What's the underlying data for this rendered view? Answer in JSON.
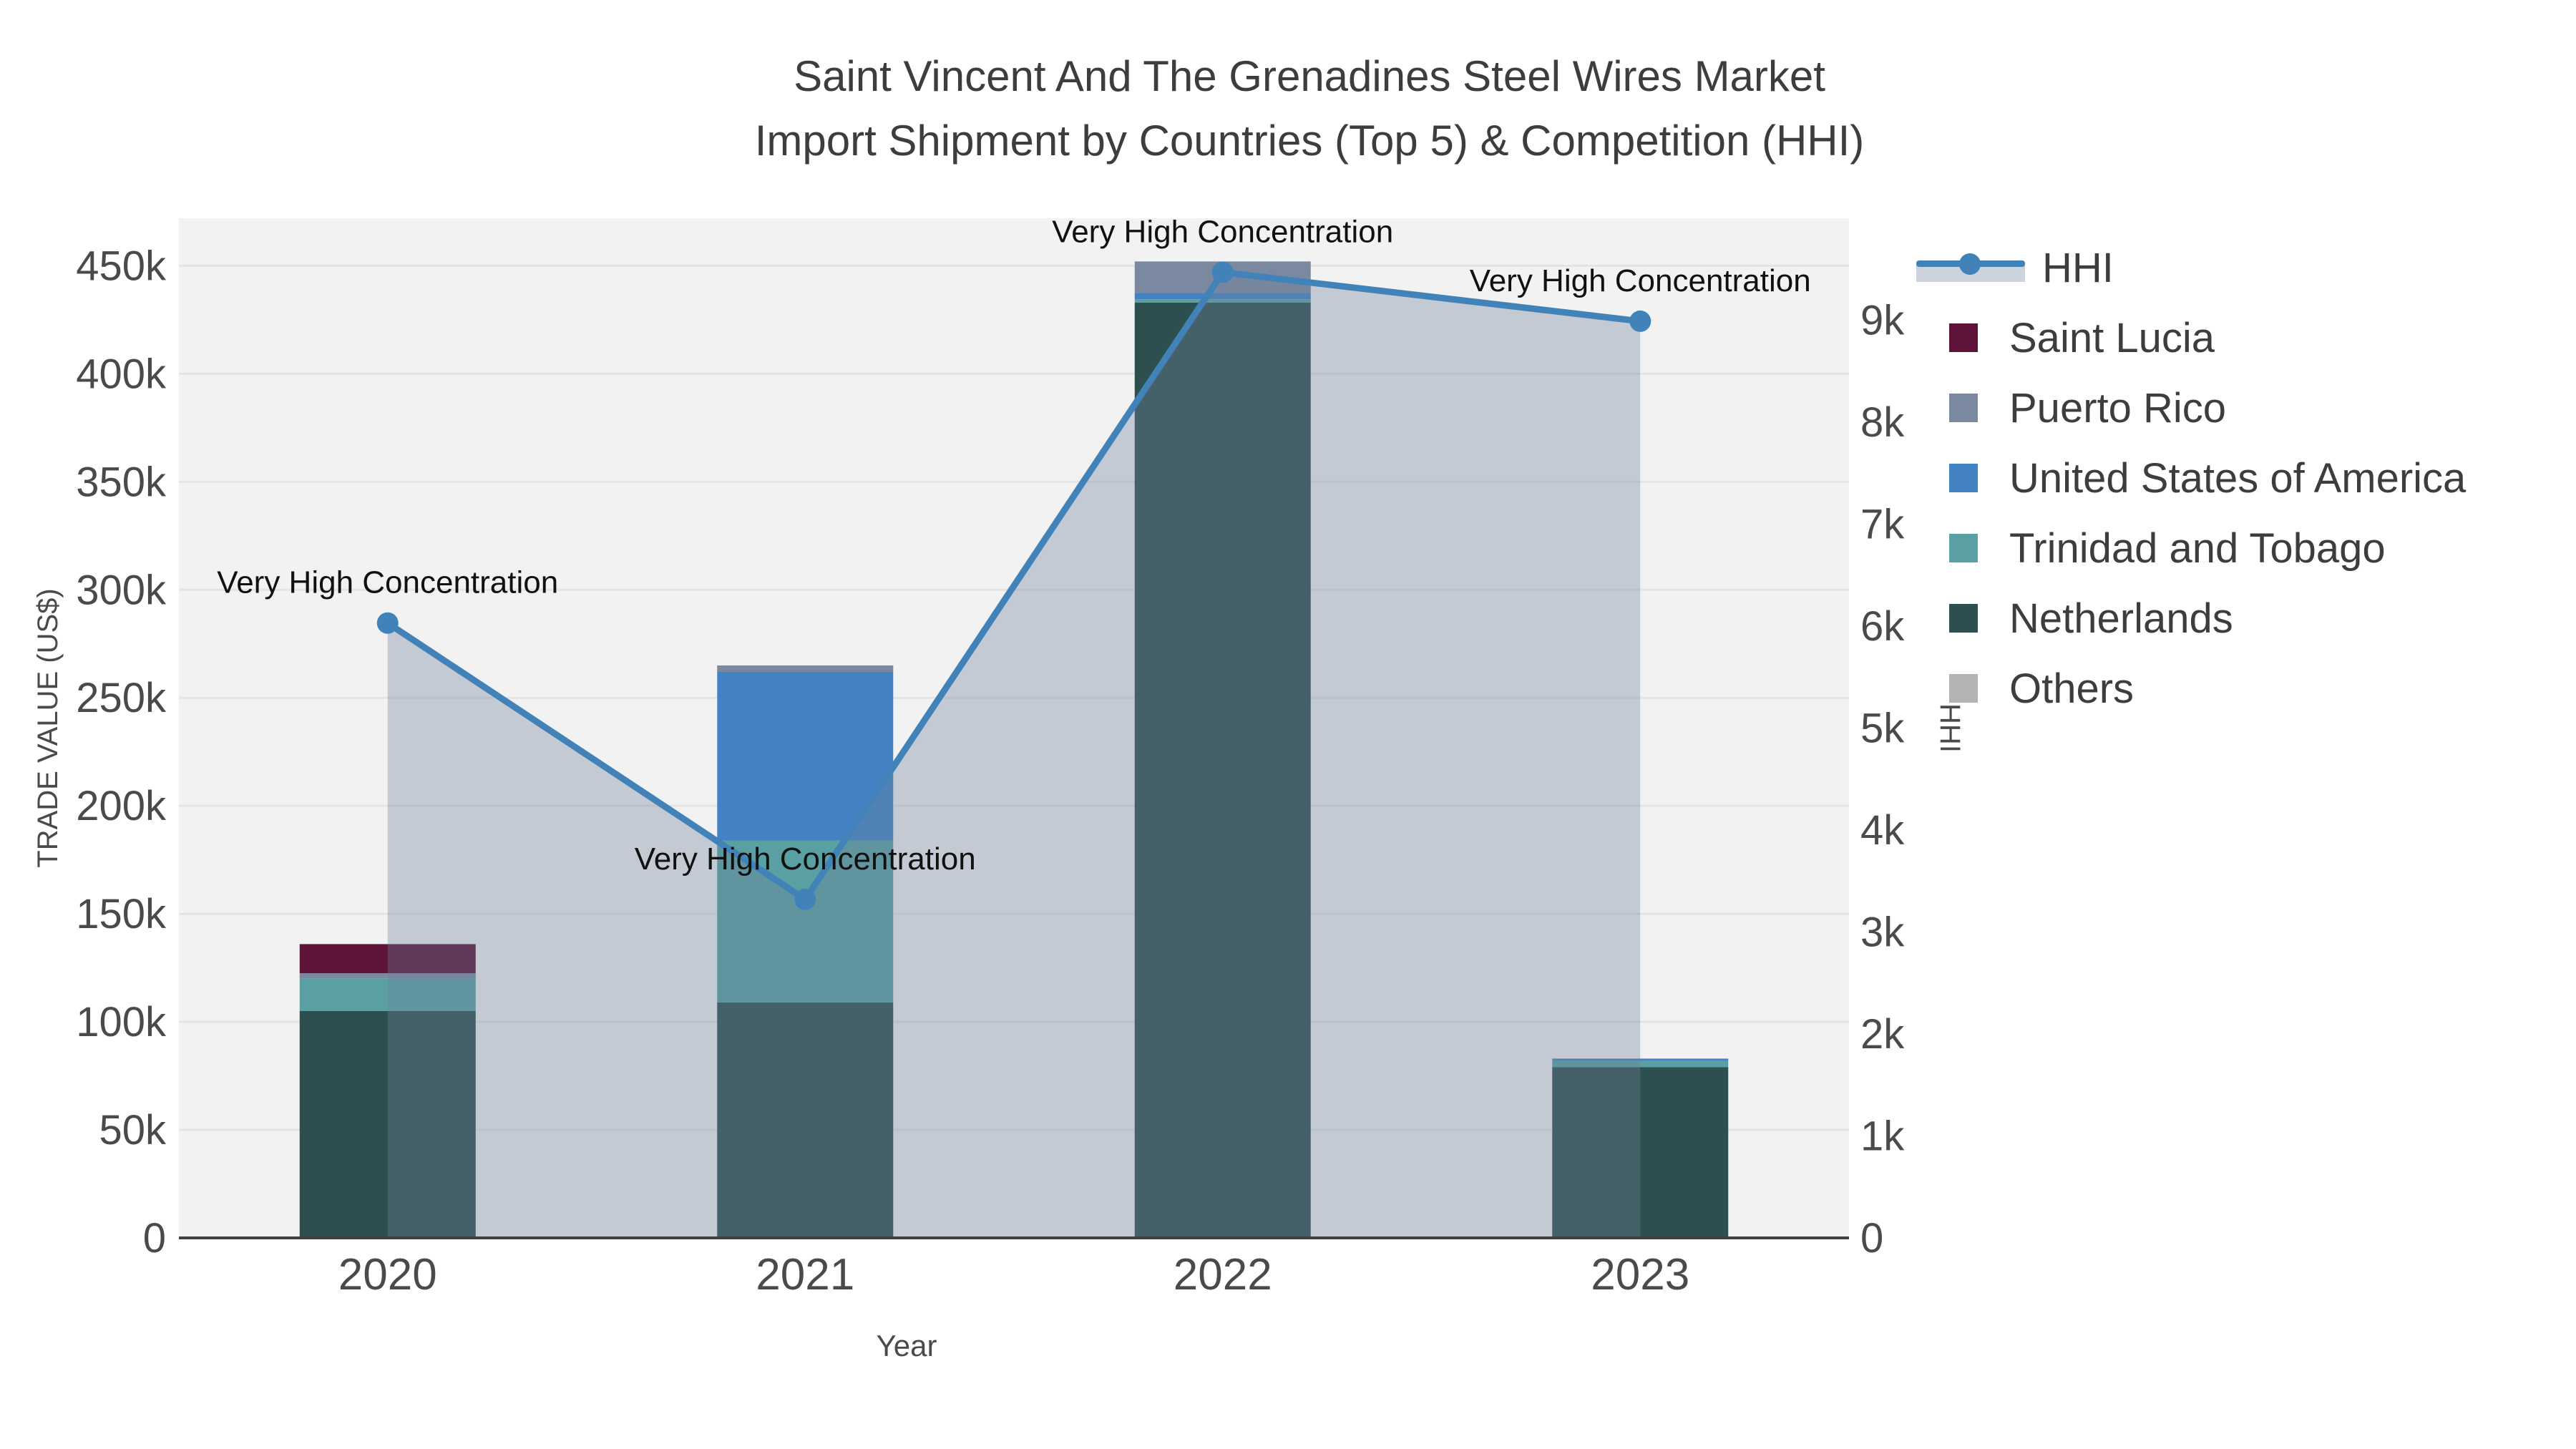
{
  "title": {
    "line1": "Saint Vincent And The Grenadines Steel Wires Market",
    "line2": "Import Shipment by Countries (Top 5) & Competition (HHI)"
  },
  "chart_data": {
    "type": "bar",
    "subtype": "stacked-bar-with-line",
    "categories": [
      "2020",
      "2021",
      "2022",
      "2023"
    ],
    "bar_series": [
      {
        "name": "Saint Lucia",
        "color": "#5e1338",
        "values": [
          13500,
          0,
          0,
          0
        ]
      },
      {
        "name": "Puerto Rico",
        "color": "#7b89a0",
        "values": [
          2500,
          3000,
          14500,
          0
        ]
      },
      {
        "name": "United States of America",
        "color": "#4383c4",
        "values": [
          0,
          78000,
          3000,
          1000
        ]
      },
      {
        "name": "Trinidad and Tobago",
        "color": "#5aa0a2",
        "values": [
          15000,
          75000,
          1500,
          3000
        ]
      },
      {
        "name": "Netherlands",
        "color": "#2e4f4f",
        "values": [
          105000,
          109000,
          433000,
          79000
        ]
      },
      {
        "name": "Others",
        "color": "#b3b3b3",
        "values": [
          0,
          0,
          0,
          0
        ]
      }
    ],
    "stack_order": [
      "Netherlands",
      "Trinidad and Tobago",
      "United States of America",
      "Puerto Rico",
      "Saint Lucia",
      "Others"
    ],
    "line_series": {
      "name": "HHI",
      "color": "#4182b8",
      "fill_color": "rgba(108,128,156,0.35)",
      "values": [
        6030,
        3320,
        9470,
        8990
      ]
    },
    "annotations": [
      {
        "text": "Very High Concentration"
      },
      {
        "text": "Very High Concentration"
      },
      {
        "text": "Very High Concentration"
      },
      {
        "text": "Very High Concentration"
      }
    ],
    "x_axis": {
      "title": "Year"
    },
    "left_axis": {
      "title": "TRADE VALUE (US$)",
      "max": 472000,
      "ticks": [
        {
          "v": 0,
          "t": "0"
        },
        {
          "v": 50000,
          "t": "50k"
        },
        {
          "v": 100000,
          "t": "100k"
        },
        {
          "v": 150000,
          "t": "150k"
        },
        {
          "v": 200000,
          "t": "200k"
        },
        {
          "v": 250000,
          "t": "250k"
        },
        {
          "v": 300000,
          "t": "300k"
        },
        {
          "v": 350000,
          "t": "350k"
        },
        {
          "v": 400000,
          "t": "400k"
        },
        {
          "v": 450000,
          "t": "450k"
        }
      ]
    },
    "right_axis": {
      "title": "HHI",
      "max": 10000,
      "ticks": [
        {
          "v": 0,
          "t": "0"
        },
        {
          "v": 1000,
          "t": "1k"
        },
        {
          "v": 2000,
          "t": "2k"
        },
        {
          "v": 3000,
          "t": "3k"
        },
        {
          "v": 4000,
          "t": "4k"
        },
        {
          "v": 5000,
          "t": "5k"
        },
        {
          "v": 6000,
          "t": "6k"
        },
        {
          "v": 7000,
          "t": "7k"
        },
        {
          "v": 8000,
          "t": "8k"
        },
        {
          "v": 9000,
          "t": "9k"
        }
      ]
    },
    "legend_position": "right",
    "plot_background": "#f2f2f2",
    "grid_color": "#e4e4e4",
    "axis_line_color": "#3f3f3f",
    "tick_color": "#4a4a4a",
    "annotation_color": "#111111"
  }
}
